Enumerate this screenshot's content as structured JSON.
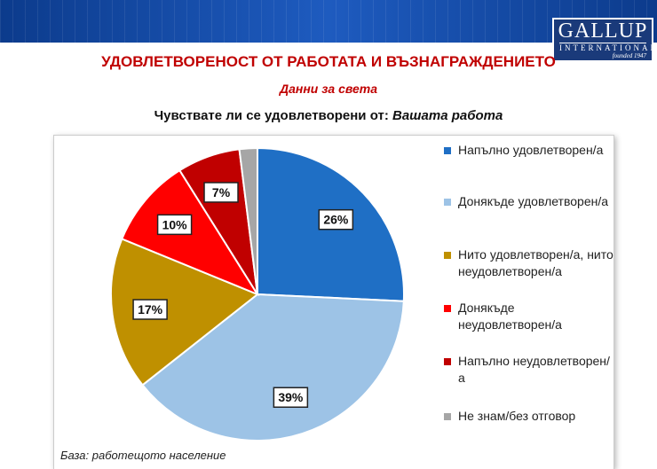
{
  "header": {
    "logo": {
      "name": "GALLUP",
      "sub": "INTERNATIONAL",
      "founded": "founded 1947"
    },
    "title": "УДОВЛЕТВОРЕНОСТ ОТ РАБОТАТА И ВЪЗНАГРАЖДЕНИЕТО",
    "subtitle": "Данни за света"
  },
  "chart_data": {
    "type": "pie",
    "title": "Чувствате ли се удовлетворени от:",
    "title_emphasis": "Вашата работа",
    "categories": [
      "Напълно удовлетворен/а",
      "Донякъде удовлетворен/а",
      "Нито удовлетворен/а, нито неудовлетворен/а",
      "Донякъде неудовлетворен/а",
      "Напълно неудовлетворен/а",
      "Не знам/без отговор"
    ],
    "values": [
      26,
      39,
      17,
      10,
      7,
      2
    ],
    "value_labels": [
      "26%",
      "39%",
      "17%",
      "10%",
      "7%",
      null
    ],
    "colors": [
      "#1f6fc5",
      "#9dc3e6",
      "#bf9000",
      "#ff0000",
      "#c00000",
      "#a6a6a6"
    ],
    "legend": "right",
    "note": "База: работещото население"
  }
}
